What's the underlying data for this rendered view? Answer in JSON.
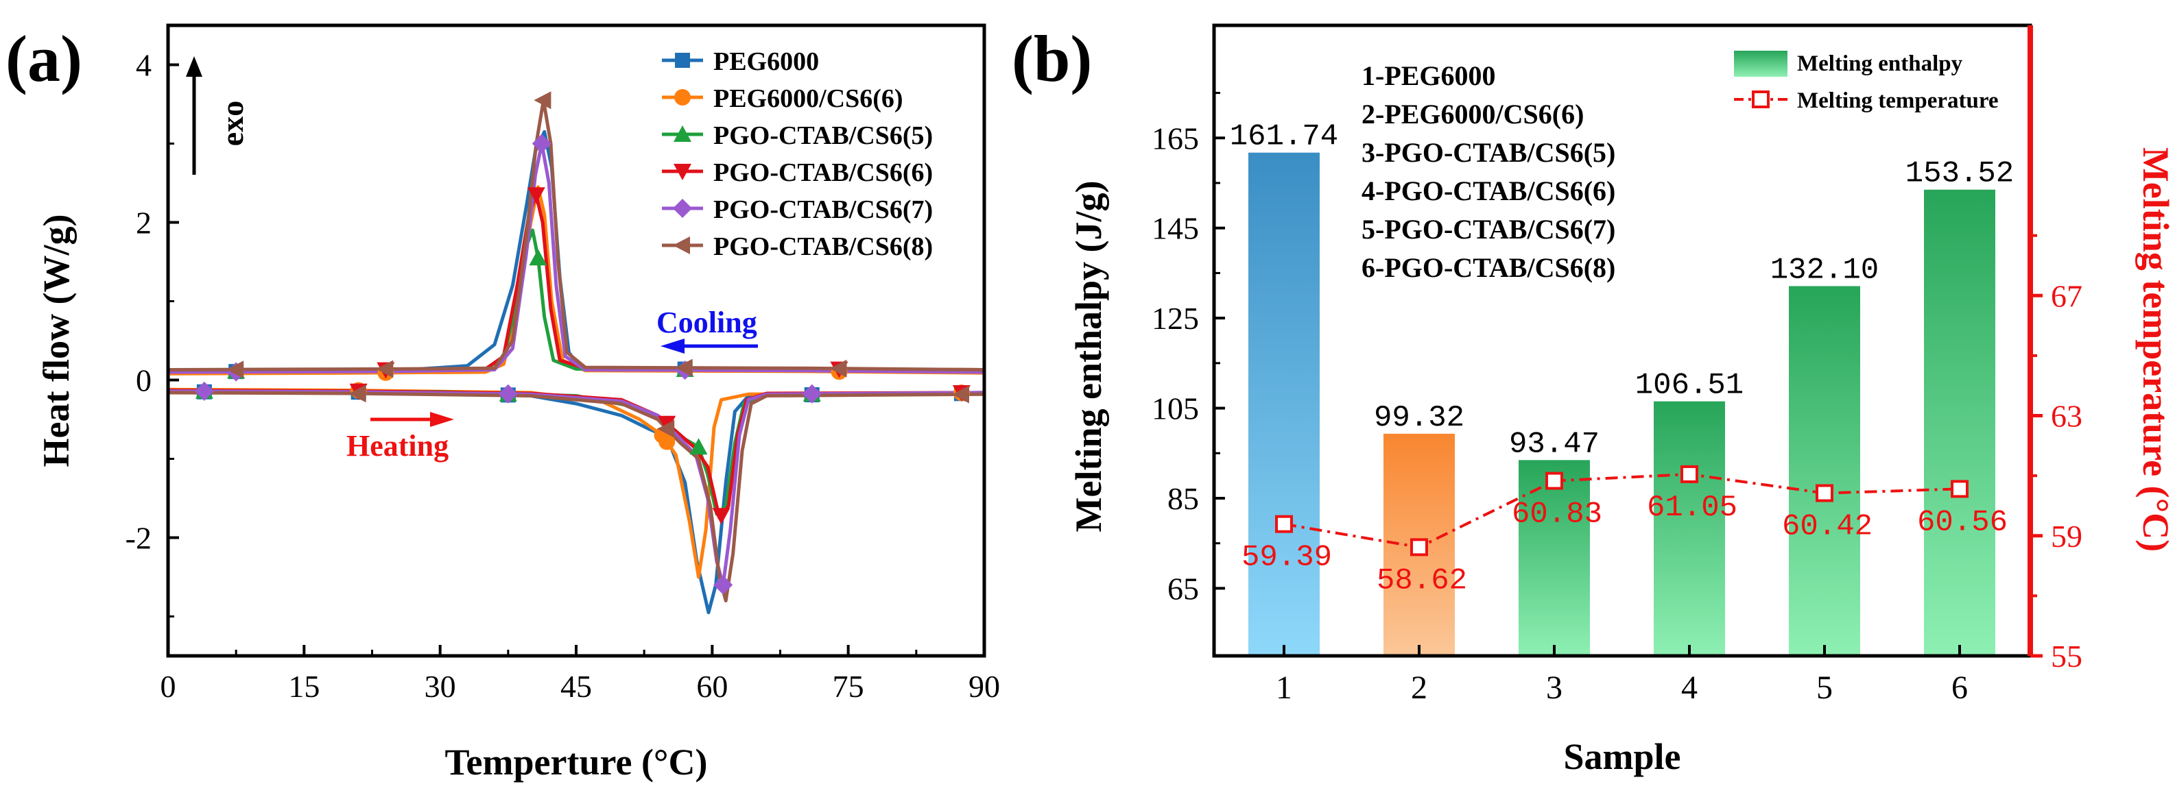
{
  "chart_data": [
    {
      "panel_label": "(a)",
      "type": "line",
      "title": "",
      "xlabel": "Temperture (°C)",
      "ylabel": "Heat flow (W/g)",
      "xlim": [
        0,
        90
      ],
      "ylim": [
        -3.5,
        4.5
      ],
      "xticks": [
        "0",
        "15",
        "30",
        "45",
        "60",
        "75",
        "90"
      ],
      "xtick_values": [
        0,
        15,
        30,
        45,
        60,
        75,
        90
      ],
      "yticks": [
        "-2",
        "0",
        "2",
        "4"
      ],
      "ytick_values": [
        -2,
        0,
        2,
        4
      ],
      "legend_position": "top-right",
      "annotations": {
        "exo": "exo",
        "cooling": "Cooling",
        "heating": "Heating"
      },
      "annotation_colors": {
        "cooling": "#1010ee",
        "heating": "#ee1111"
      },
      "series": [
        {
          "name": "PEG6000",
          "color": "#1f6fb4",
          "marker": "square",
          "cooling": [
            [
              0,
              0.1
            ],
            [
              10,
              0.11
            ],
            [
              25,
              0.12
            ],
            [
              33,
              0.18
            ],
            [
              36,
              0.45
            ],
            [
              38,
              1.2
            ],
            [
              39.5,
              2.2
            ],
            [
              40.5,
              2.9
            ],
            [
              41.5,
              3.15
            ],
            [
              42.3,
              2.7
            ],
            [
              43.2,
              1.3
            ],
            [
              44.2,
              0.35
            ],
            [
              45.5,
              0.15
            ],
            [
              55,
              0.14
            ],
            [
              70,
              0.13
            ],
            [
              85,
              0.11
            ],
            [
              90,
              0.1
            ]
          ],
          "heating": [
            [
              0,
              -0.15
            ],
            [
              15,
              -0.15
            ],
            [
              30,
              -0.16
            ],
            [
              40,
              -0.2
            ],
            [
              45,
              -0.3
            ],
            [
              50,
              -0.45
            ],
            [
              53,
              -0.62
            ],
            [
              55,
              -0.72
            ],
            [
              57,
              -1.3
            ],
            [
              58.3,
              -2.3
            ],
            [
              59.6,
              -2.95
            ],
            [
              60.4,
              -2.6
            ],
            [
              61.5,
              -1.3
            ],
            [
              62.5,
              -0.4
            ],
            [
              64,
              -0.2
            ],
            [
              75,
              -0.18
            ],
            [
              90,
              -0.17
            ]
          ],
          "cooling_markers": [],
          "heating_markers": []
        },
        {
          "name": "PEG6000/CS6(6)",
          "color": "#ff7f0e",
          "marker": "circle",
          "cooling": [
            [
              0,
              0.08
            ],
            [
              20,
              0.09
            ],
            [
              35,
              0.1
            ],
            [
              37,
              0.2
            ],
            [
              38.5,
              0.9
            ],
            [
              40,
              2.0
            ],
            [
              40.8,
              2.45
            ],
            [
              41.5,
              2.1
            ],
            [
              42.3,
              1.0
            ],
            [
              43.5,
              0.25
            ],
            [
              46,
              0.12
            ],
            [
              70,
              0.11
            ],
            [
              90,
              0.09
            ]
          ],
          "heating": [
            [
              0,
              -0.12
            ],
            [
              20,
              -0.13
            ],
            [
              40,
              -0.16
            ],
            [
              48,
              -0.28
            ],
            [
              52,
              -0.5
            ],
            [
              54.5,
              -0.7
            ],
            [
              56,
              -0.95
            ],
            [
              57.5,
              -1.8
            ],
            [
              58.5,
              -2.5
            ],
            [
              59.3,
              -1.9
            ],
            [
              60.2,
              -0.6
            ],
            [
              61,
              -0.25
            ],
            [
              64,
              -0.18
            ],
            [
              90,
              -0.16
            ]
          ],
          "cooling_markers": [],
          "heating_markers": [
            54.5
          ]
        },
        {
          "name": "PGO-CTAB/CS6(5)",
          "color": "#1ea03c",
          "marker": "triangle-up",
          "cooling": [
            [
              0,
              0.11
            ],
            [
              25,
              0.12
            ],
            [
              35,
              0.13
            ],
            [
              37,
              0.3
            ],
            [
              38.5,
              1.0
            ],
            [
              39.5,
              1.7
            ],
            [
              40.2,
              1.9
            ],
            [
              40.8,
              1.55
            ],
            [
              41.5,
              0.8
            ],
            [
              42.5,
              0.25
            ],
            [
              45,
              0.14
            ],
            [
              70,
              0.13
            ],
            [
              90,
              0.11
            ]
          ],
          "heating": [
            [
              0,
              -0.14
            ],
            [
              30,
              -0.15
            ],
            [
              45,
              -0.2
            ],
            [
              52,
              -0.35
            ],
            [
              55,
              -0.55
            ],
            [
              57,
              -0.75
            ],
            [
              58.5,
              -0.85
            ],
            [
              59.5,
              -1.2
            ],
            [
              60.5,
              -1.7
            ],
            [
              61.5,
              -1.6
            ],
            [
              62.5,
              -0.8
            ],
            [
              63.5,
              -0.3
            ],
            [
              66,
              -0.18
            ],
            [
              90,
              -0.16
            ]
          ],
          "cooling_markers": [
            40.8
          ],
          "heating_markers": [
            58.5
          ]
        },
        {
          "name": "PGO-CTAB/CS6(6)",
          "color": "#e0101a",
          "marker": "triangle-down",
          "cooling": [
            [
              0,
              0.12
            ],
            [
              25,
              0.13
            ],
            [
              35,
              0.14
            ],
            [
              37,
              0.3
            ],
            [
              38.5,
              1.2
            ],
            [
              39.8,
              2.1
            ],
            [
              40.6,
              2.35
            ],
            [
              41.3,
              2.0
            ],
            [
              42.2,
              0.9
            ],
            [
              43.2,
              0.25
            ],
            [
              46,
              0.15
            ],
            [
              70,
              0.14
            ],
            [
              90,
              0.13
            ]
          ],
          "heating": [
            [
              0,
              -0.13
            ],
            [
              20,
              -0.14
            ],
            [
              40,
              -0.17
            ],
            [
              50,
              -0.25
            ],
            [
              54,
              -0.45
            ],
            [
              56.5,
              -0.7
            ],
            [
              58,
              -0.85
            ],
            [
              59.5,
              -1.1
            ],
            [
              60.8,
              -1.75
            ],
            [
              61.8,
              -1.6
            ],
            [
              62.8,
              -0.7
            ],
            [
              63.8,
              -0.25
            ],
            [
              66,
              -0.17
            ],
            [
              90,
              -0.16
            ]
          ],
          "cooling_markers": [
            40.6
          ],
          "heating_markers": [
            61
          ]
        },
        {
          "name": "PGO-CTAB/CS6(7)",
          "color": "#9b59d0",
          "marker": "diamond",
          "cooling": [
            [
              0,
              0.1
            ],
            [
              25,
              0.11
            ],
            [
              36,
              0.13
            ],
            [
              38,
              0.4
            ],
            [
              39.5,
              1.6
            ],
            [
              40.5,
              2.6
            ],
            [
              41.2,
              3.0
            ],
            [
              42,
              2.5
            ],
            [
              42.8,
              1.2
            ],
            [
              43.8,
              0.3
            ],
            [
              46,
              0.13
            ],
            [
              70,
              0.12
            ],
            [
              90,
              0.1
            ]
          ],
          "heating": [
            [
              0,
              -0.14
            ],
            [
              20,
              -0.15
            ],
            [
              40,
              -0.18
            ],
            [
              50,
              -0.27
            ],
            [
              54,
              -0.45
            ],
            [
              56.5,
              -0.75
            ],
            [
              58.2,
              -0.95
            ],
            [
              59.5,
              -1.5
            ],
            [
              60.5,
              -2.3
            ],
            [
              61.2,
              -2.6
            ],
            [
              62,
              -1.9
            ],
            [
              63,
              -0.7
            ],
            [
              64,
              -0.25
            ],
            [
              66,
              -0.18
            ],
            [
              90,
              -0.16
            ]
          ],
          "cooling_markers": [
            41.2
          ],
          "heating_markers": [
            61.2
          ]
        },
        {
          "name": "PGO-CTAB/CS6(8)",
          "color": "#9c5a48",
          "marker": "triangle-left",
          "cooling": [
            [
              0,
              0.13
            ],
            [
              25,
              0.14
            ],
            [
              36,
              0.15
            ],
            [
              38,
              0.5
            ],
            [
              39.5,
              1.8
            ],
            [
              40.6,
              3.0
            ],
            [
              41.4,
              3.55
            ],
            [
              42.2,
              3.0
            ],
            [
              43,
              1.5
            ],
            [
              44,
              0.35
            ],
            [
              46,
              0.16
            ],
            [
              70,
              0.15
            ],
            [
              90,
              0.13
            ]
          ],
          "heating": [
            [
              0,
              -0.16
            ],
            [
              20,
              -0.17
            ],
            [
              40,
              -0.2
            ],
            [
              50,
              -0.3
            ],
            [
              54,
              -0.5
            ],
            [
              56.5,
              -0.8
            ],
            [
              58.5,
              -1.0
            ],
            [
              59.8,
              -1.6
            ],
            [
              60.8,
              -2.5
            ],
            [
              61.5,
              -2.8
            ],
            [
              62.3,
              -2.2
            ],
            [
              63.3,
              -0.9
            ],
            [
              64.3,
              -0.3
            ],
            [
              66,
              -0.2
            ],
            [
              90,
              -0.18
            ]
          ],
          "cooling_markers": [
            41.4
          ],
          "heating_markers": []
        }
      ],
      "cooling_marker_x": [
        7.5,
        24,
        57,
        74
      ],
      "heating_marker_x": [
        4,
        21,
        37.5,
        55,
        71,
        87.5
      ]
    },
    {
      "panel_label": "(b)",
      "type": "bar",
      "title": "",
      "xlabel": "Sample",
      "ylabel": "Melting enthalpy (J/g)",
      "y2label": "Melting temperature (°C)",
      "categories": [
        "1",
        "2",
        "3",
        "4",
        "5",
        "6"
      ],
      "ylim": [
        50,
        190
      ],
      "yticks": [
        "65",
        "85",
        "105",
        "125",
        "145",
        "165"
      ],
      "ytick_values": [
        65,
        85,
        105,
        125,
        145,
        165
      ],
      "y2lim": [
        55,
        76
      ],
      "y2ticks": [
        "55",
        "59",
        "63",
        "67"
      ],
      "y2tick_values": [
        55,
        59,
        63,
        67
      ],
      "legend_position": "top-right",
      "series": [
        {
          "name": "Melting enthalpy",
          "type": "bar",
          "values": [
            161.74,
            99.32,
            93.47,
            106.51,
            132.1,
            153.52
          ],
          "labels": [
            "161.74",
            "99.32",
            "93.47",
            "106.51",
            "132.10",
            "153.52"
          ],
          "bar_colors": [
            [
              "#3a8ec4",
              "#8ed8fa"
            ],
            [
              "#f98630",
              "#fbc798"
            ],
            [
              "#27a559",
              "#8ef0b3"
            ],
            [
              "#27a559",
              "#8ef0b3"
            ],
            [
              "#27a559",
              "#8ef0b3"
            ],
            [
              "#27a559",
              "#8ef0b3"
            ]
          ]
        },
        {
          "name": "Melting temperature",
          "type": "line",
          "axis": "right",
          "color": "#ee1111",
          "values": [
            59.39,
            58.62,
            60.83,
            61.05,
            60.42,
            60.56
          ],
          "labels": [
            "59.39",
            "58.62",
            "60.83",
            "61.05",
            "60.42",
            "60.56"
          ]
        }
      ],
      "legend_swatch_colors": [
        "#27a559",
        "#8ef0b3"
      ],
      "sample_list": [
        "1-PEG6000",
        "2-PEG6000/CS6(6)",
        "3-PGO-CTAB/CS6(5)",
        "4-PGO-CTAB/CS6(6)",
        "5-PGO-CTAB/CS6(7)",
        "6-PGO-CTAB/CS6(8)"
      ]
    }
  ]
}
